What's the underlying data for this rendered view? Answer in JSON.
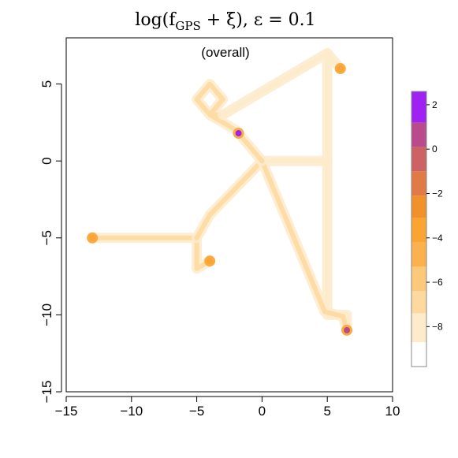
{
  "chart_data": {
    "type": "heatmap",
    "title": {
      "prefix": "log(f",
      "sub": "GPS",
      "mid": " + ξ), ",
      "eps_symbol": "ε",
      "eps_rest": " = 0.1"
    },
    "subtitle": "(overall)",
    "xlim": [
      -15,
      10
    ],
    "ylim": [
      -15,
      8
    ],
    "x_ticks": [
      -15,
      -10,
      -5,
      0,
      5,
      10
    ],
    "x_tick_labels": [
      "−15",
      "−10",
      "−5",
      "0",
      "5",
      "10"
    ],
    "y_ticks": [
      -15,
      -10,
      -5,
      0,
      5
    ],
    "y_tick_labels": [
      "−15",
      "−10",
      "−5",
      "0",
      "5"
    ],
    "paths": [
      {
        "points": [
          [
            -13,
            -5
          ],
          [
            -5,
            -5
          ],
          [
            -5,
            -7
          ],
          [
            -4,
            -6.5
          ]
        ],
        "level": -7
      },
      {
        "points": [
          [
            -5,
            -5
          ],
          [
            -4,
            -3.5
          ],
          [
            0,
            0
          ]
        ],
        "level": -7
      },
      {
        "points": [
          [
            0,
            0
          ],
          [
            5,
            0
          ],
          [
            5,
            -10
          ],
          [
            6.5,
            -10
          ],
          [
            6.5,
            -11
          ]
        ],
        "level": -7.5
      },
      {
        "points": [
          [
            0,
            0
          ],
          [
            4.8,
            -9.8
          ],
          [
            6.2,
            -10.1
          ],
          [
            6.5,
            -11
          ]
        ],
        "level": -7
      },
      {
        "points": [
          [
            0,
            0
          ],
          [
            -2,
            2
          ],
          [
            -4,
            3
          ],
          [
            -5,
            4
          ],
          [
            -4,
            5
          ],
          [
            -3,
            4
          ],
          [
            -4,
            3
          ],
          [
            -3,
            3
          ]
        ],
        "level": -6.5
      },
      {
        "points": [
          [
            -3,
            3
          ],
          [
            5,
            7
          ],
          [
            5,
            0
          ]
        ],
        "level": -8
      },
      {
        "points": [
          [
            5,
            7
          ],
          [
            6,
            6
          ]
        ],
        "level": -8
      }
    ],
    "hotspots": [
      {
        "x": -13,
        "y": -5,
        "level": -4
      },
      {
        "x": -4,
        "y": -6.5,
        "level": -4
      },
      {
        "x": 6,
        "y": 6,
        "level": -4
      },
      {
        "x": -1.8,
        "y": 1.8,
        "level": 2
      },
      {
        "x": 6.5,
        "y": -11,
        "level": 1
      }
    ],
    "legend": {
      "range": [
        -9.8,
        2.6
      ],
      "tick_values": [
        -8,
        -6,
        -4,
        -2,
        0,
        2
      ],
      "tick_labels": [
        "−8",
        "−6",
        "−4",
        "−2",
        "0",
        "2"
      ],
      "bins": [
        {
          "from": -9.8,
          "to": -8.7,
          "color": "#ffffff"
        },
        {
          "from": -8.7,
          "to": -7.4,
          "color": "#fdebcb"
        },
        {
          "from": -7.4,
          "to": -6.4,
          "color": "#fdd9a0"
        },
        {
          "from": -6.4,
          "to": -5.3,
          "color": "#fcc87a"
        },
        {
          "from": -5.3,
          "to": -4.2,
          "color": "#fbb24e"
        },
        {
          "from": -4.2,
          "to": -3.1,
          "color": "#f9a433"
        },
        {
          "from": -3.1,
          "to": -2.1,
          "color": "#f0912c"
        },
        {
          "from": -2.1,
          "to": -1.0,
          "color": "#e07b47"
        },
        {
          "from": -1.0,
          "to": 0.1,
          "color": "#cc6264"
        },
        {
          "from": 0.1,
          "to": 1.2,
          "color": "#b94b8c"
        },
        {
          "from": 1.2,
          "to": 2.6,
          "color": "#9f22f2"
        }
      ]
    }
  }
}
